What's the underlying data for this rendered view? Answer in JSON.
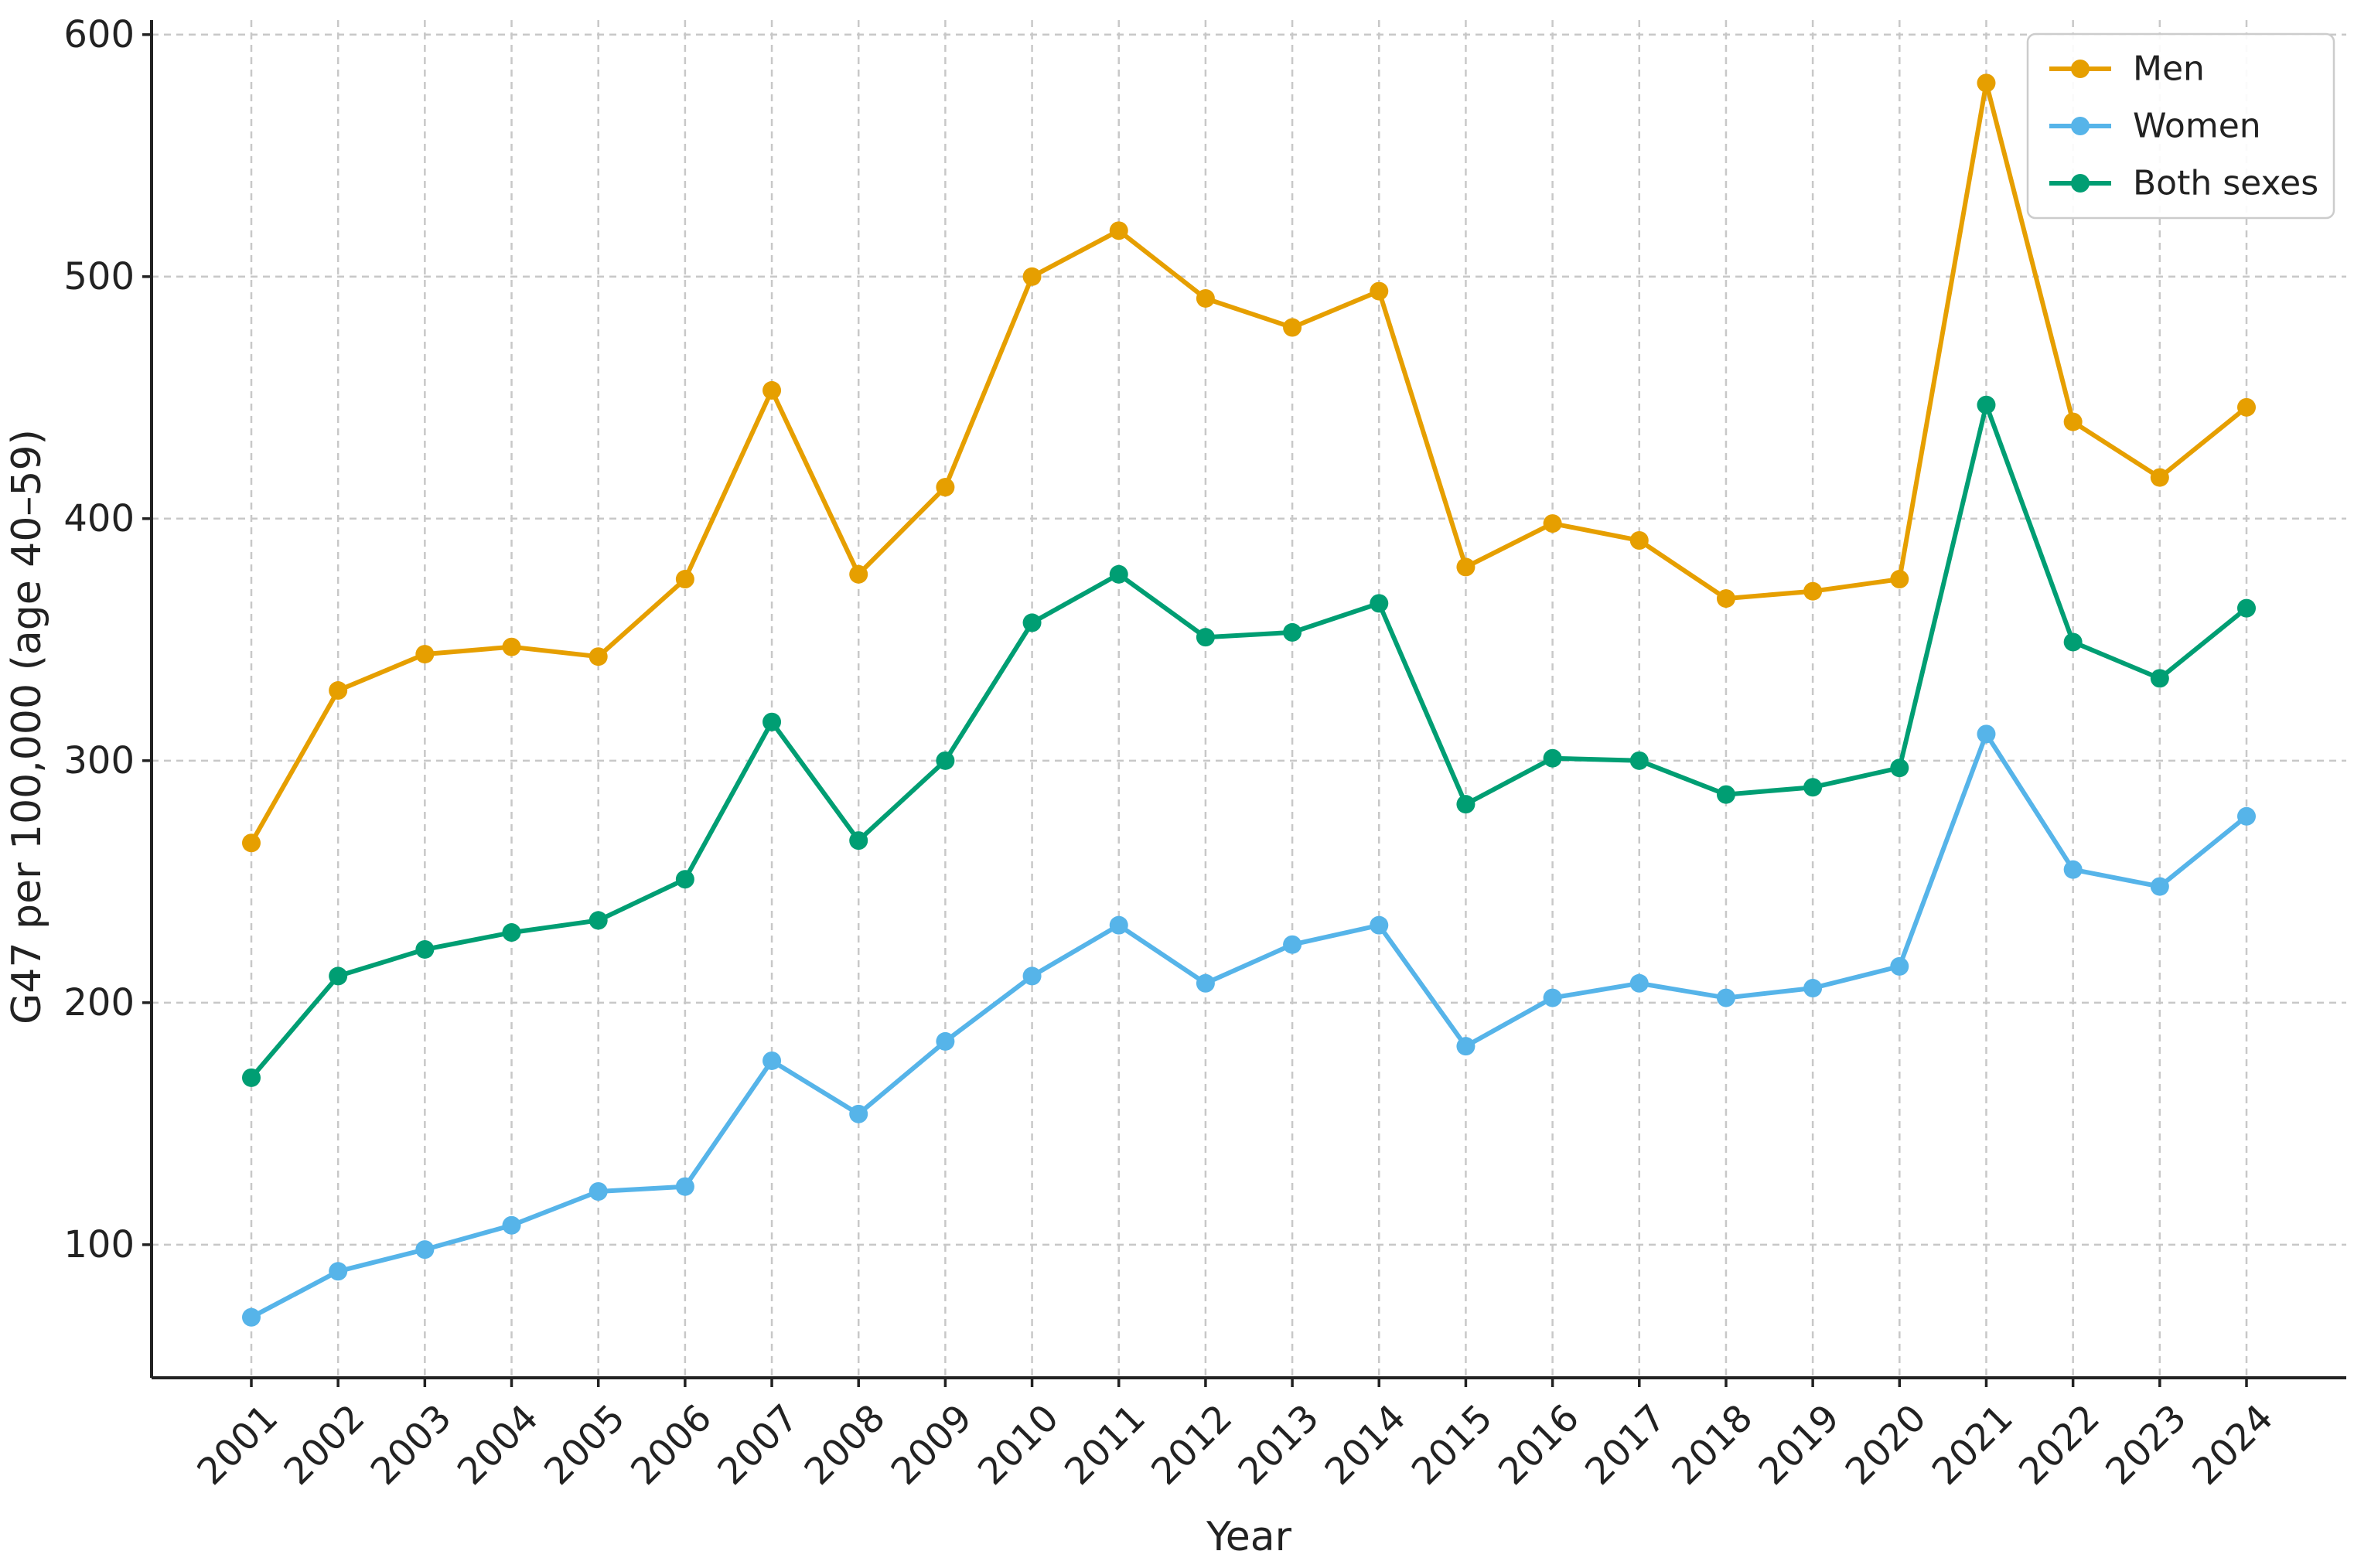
{
  "chart_data": {
    "type": "line",
    "title": "",
    "xlabel": "Year",
    "ylabel": "G47 per 100,000 (age 40–59)",
    "x": [
      "2001",
      "2002",
      "2003",
      "2004",
      "2005",
      "2006",
      "2007",
      "2008",
      "2009",
      "2010",
      "2011",
      "2012",
      "2013",
      "2014",
      "2015",
      "2016",
      "2017",
      "2018",
      "2019",
      "2020",
      "2021",
      "2022",
      "2023",
      "2024"
    ],
    "ylim": [
      45,
      606
    ],
    "yticks": [
      100,
      200,
      300,
      400,
      500,
      600
    ],
    "grid": true,
    "legend_position": "top-right",
    "series": [
      {
        "name": "Men",
        "color": "#E69F00",
        "values": [
          266,
          329,
          344,
          347,
          343,
          375,
          453,
          377,
          413,
          500,
          519,
          491,
          479,
          494,
          380,
          398,
          391,
          367,
          370,
          375,
          580,
          440,
          417,
          446
        ]
      },
      {
        "name": "Women",
        "color": "#56B4E9",
        "values": [
          70,
          89,
          98,
          108,
          122,
          124,
          176,
          154,
          184,
          211,
          232,
          208,
          224,
          232,
          182,
          202,
          208,
          202,
          206,
          215,
          311,
          255,
          248,
          277
        ]
      },
      {
        "name": "Both sexes",
        "color": "#009E73",
        "values": [
          169,
          211,
          222,
          229,
          234,
          251,
          316,
          267,
          300,
          357,
          377,
          351,
          353,
          365,
          282,
          301,
          300,
          286,
          289,
          297,
          447,
          349,
          334,
          363
        ]
      }
    ]
  }
}
